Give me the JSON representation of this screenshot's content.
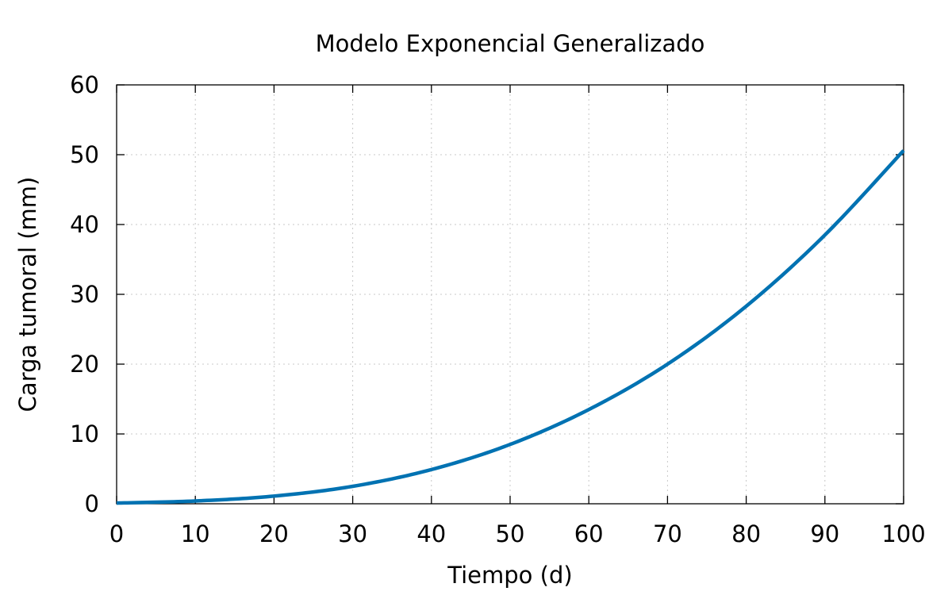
{
  "chart_data": {
    "type": "line",
    "title": "Modelo Exponencial Generalizado",
    "xlabel": "Tiempo (d)",
    "ylabel": "Carga tumoral (mm)",
    "xlim": [
      0,
      100
    ],
    "ylim": [
      0,
      60
    ],
    "xticks": [
      "0",
      "10",
      "20",
      "30",
      "40",
      "50",
      "60",
      "70",
      "80",
      "90",
      "100"
    ],
    "yticks": [
      "0",
      "10",
      "20",
      "30",
      "40",
      "50",
      "60"
    ],
    "grid": true,
    "legend": "none",
    "color": "#0072b2",
    "series": [
      {
        "x": [
          0,
          10,
          20,
          30,
          40,
          50,
          60,
          70,
          80,
          90,
          100
        ],
        "y": [
          0.1,
          0.4,
          1.1,
          2.5,
          4.9,
          8.5,
          13.5,
          20.0,
          28.3,
          38.5,
          50.6
        ]
      }
    ]
  }
}
